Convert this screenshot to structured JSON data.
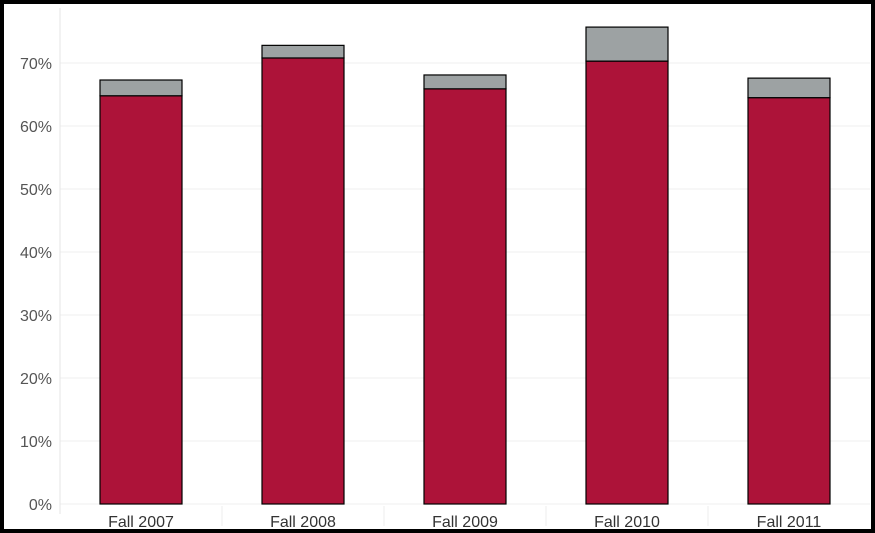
{
  "chart_data": {
    "type": "bar",
    "stacked": true,
    "categories": [
      "Fall 2007",
      "Fall 2008",
      "Fall 2009",
      "Fall 2010",
      "Fall 2011"
    ],
    "series": [
      {
        "values": [
          64.8,
          70.8,
          65.9,
          70.3,
          64.5
        ],
        "color": "#ad1339"
      },
      {
        "values": [
          2.5,
          2.0,
          2.2,
          5.4,
          3.1
        ],
        "color": "#9da2a3"
      }
    ],
    "ylim": [
      0,
      77
    ],
    "yticks": [
      0,
      10,
      20,
      30,
      40,
      50,
      60,
      70
    ],
    "ytick_labels": [
      "0%",
      "10%",
      "20%",
      "30%",
      "40%",
      "50%",
      "60%",
      "70%"
    ],
    "grid": true,
    "title": "",
    "xlabel": "",
    "ylabel": ""
  }
}
